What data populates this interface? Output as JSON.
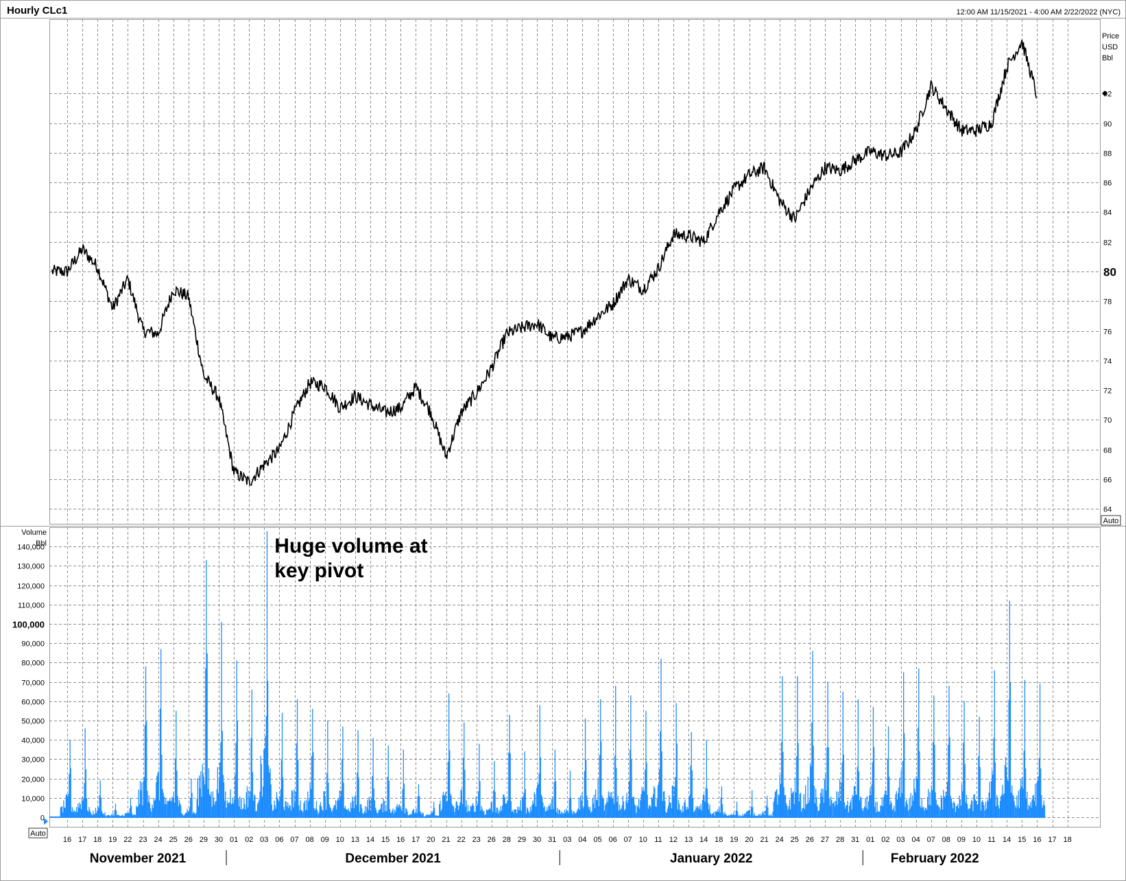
{
  "header": {
    "title": "Hourly CLc1",
    "range": "12:00 AM 11/15/2021 - 4:00 AM 2/22/2022 (NYC)"
  },
  "chart_data": [
    {
      "type": "line",
      "title": "Hourly CLc1",
      "ylabel": "Price USD Bbl",
      "ylabel_lines": [
        "Price",
        "USD",
        "Bbl"
      ],
      "ylim": [
        63,
        97
      ],
      "ytick_values": [
        64,
        66,
        68,
        70,
        72,
        74,
        76,
        78,
        80,
        82,
        84,
        86,
        88,
        90,
        92
      ],
      "ytick_labels": [
        "64",
        "66",
        "68",
        "70",
        "72",
        "74",
        "76",
        "78",
        "80",
        "82",
        "84",
        "86",
        "88",
        "90",
        "92"
      ],
      "emphasized_tick": "80",
      "last_value_marker": 92,
      "auto_button": "Auto",
      "grid": true,
      "series": [
        {
          "color": "#000000",
          "x": [
            "2021-11-15",
            "2021-11-16",
            "2021-11-17",
            "2021-11-18",
            "2021-11-19",
            "2021-11-22",
            "2021-11-23",
            "2021-11-24",
            "2021-11-25",
            "2021-11-26",
            "2021-11-29",
            "2021-11-30",
            "2021-12-01",
            "2021-12-02",
            "2021-12-03",
            "2021-12-06",
            "2021-12-07",
            "2021-12-08",
            "2021-12-09",
            "2021-12-10",
            "2021-12-13",
            "2021-12-14",
            "2021-12-15",
            "2021-12-16",
            "2021-12-17",
            "2021-12-20",
            "2021-12-21",
            "2021-12-22",
            "2021-12-23",
            "2021-12-27",
            "2021-12-28",
            "2021-12-29",
            "2021-12-30",
            "2021-12-31",
            "2022-01-03",
            "2022-01-04",
            "2022-01-05",
            "2022-01-06",
            "2022-01-07",
            "2022-01-10",
            "2022-01-11",
            "2022-01-12",
            "2022-01-13",
            "2022-01-14",
            "2022-01-18",
            "2022-01-19",
            "2022-01-20",
            "2022-01-21",
            "2022-01-24",
            "2022-01-25",
            "2022-01-26",
            "2022-01-27",
            "2022-01-28",
            "2022-01-31",
            "2022-02-01",
            "2022-02-02",
            "2022-02-03",
            "2022-02-04",
            "2022-02-07",
            "2022-02-08",
            "2022-02-09",
            "2022-02-10",
            "2022-02-11",
            "2022-02-14",
            "2022-02-15"
          ],
          "values": [
            80.0,
            81.5,
            80.3,
            77.5,
            79.5,
            76.0,
            75.8,
            78.8,
            78.3,
            73.0,
            71.5,
            66.5,
            65.8,
            67.0,
            68.0,
            70.5,
            72.5,
            72.3,
            70.8,
            71.6,
            71.0,
            70.5,
            70.8,
            72.2,
            70.5,
            67.5,
            70.5,
            71.8,
            73.5,
            75.8,
            76.2,
            76.5,
            75.5,
            75.6,
            76.0,
            77.0,
            77.8,
            79.5,
            78.8,
            80.2,
            82.5,
            82.4,
            82.0,
            84.0,
            85.5,
            86.5,
            87.0,
            84.8,
            83.5,
            85.5,
            87.0,
            86.8,
            87.5,
            88.1,
            87.8,
            88.0,
            89.5,
            92.5,
            91.0,
            89.5,
            89.5,
            90.0,
            93.8,
            95.5,
            91.8
          ]
        }
      ]
    },
    {
      "type": "bar",
      "title": "",
      "ylabel": "Volume Bbl",
      "ylabel_lines": [
        "Volume",
        "Bbl"
      ],
      "ylim": [
        -5000,
        150000
      ],
      "ytick_values": [
        0,
        10000,
        20000,
        30000,
        40000,
        50000,
        60000,
        70000,
        80000,
        90000,
        100000,
        110000,
        120000,
        130000,
        140000
      ],
      "ytick_labels": [
        "0",
        "10,000",
        "20,000",
        "30,000",
        "40,000",
        "50,000",
        "60,000",
        "70,000",
        "80,000",
        "90,000",
        "100,000",
        "110,000",
        "120,000",
        "130,000",
        "140,000"
      ],
      "emphasized_tick": "100,000",
      "auto_button": "Auto",
      "grid": true,
      "bar_color": "#1a8cff",
      "annotation": {
        "lines": [
          "Huge volume at",
          "key pivot"
        ],
        "date": "2021-12-02"
      },
      "series": [
        {
          "x": [
            "2021-11-15",
            "2021-11-16",
            "2021-11-17",
            "2021-11-18",
            "2021-11-19",
            "2021-11-22",
            "2021-11-23",
            "2021-11-24",
            "2021-11-25",
            "2021-11-26",
            "2021-11-29",
            "2021-11-30",
            "2021-12-01",
            "2021-12-02",
            "2021-12-03",
            "2021-12-06",
            "2021-12-07",
            "2021-12-08",
            "2021-12-09",
            "2021-12-10",
            "2021-12-13",
            "2021-12-14",
            "2021-12-15",
            "2021-12-16",
            "2021-12-17",
            "2021-12-20",
            "2021-12-21",
            "2021-12-22",
            "2021-12-23",
            "2021-12-27",
            "2021-12-28",
            "2021-12-29",
            "2021-12-30",
            "2021-12-31",
            "2022-01-03",
            "2022-01-04",
            "2022-01-05",
            "2022-01-06",
            "2022-01-07",
            "2022-01-10",
            "2022-01-11",
            "2022-01-12",
            "2022-01-13",
            "2022-01-14",
            "2022-01-18",
            "2022-01-19",
            "2022-01-20",
            "2022-01-21",
            "2022-01-24",
            "2022-01-25",
            "2022-01-26",
            "2022-01-27",
            "2022-01-28",
            "2022-01-31",
            "2022-02-01",
            "2022-02-02",
            "2022-02-03",
            "2022-02-04",
            "2022-02-07",
            "2022-02-08",
            "2022-02-09",
            "2022-02-10",
            "2022-02-11",
            "2022-02-14",
            "2022-02-15"
          ],
          "values": [
            40000,
            46000,
            19000,
            7000,
            10000,
            78000,
            87000,
            55000,
            20000,
            133000,
            101000,
            81000,
            66000,
            148000,
            54000,
            61000,
            56000,
            50000,
            47000,
            45000,
            41000,
            37000,
            35000,
            17000,
            8000,
            64000,
            49000,
            38000,
            29000,
            53000,
            34000,
            58000,
            35000,
            24000,
            51000,
            61000,
            68000,
            63000,
            55000,
            82000,
            59000,
            44000,
            40000,
            16000,
            8000,
            14000,
            11000,
            73000,
            73000,
            86000,
            70000,
            65000,
            61000,
            57000,
            47000,
            75000,
            77000,
            63000,
            68000,
            60000,
            52000,
            76000,
            112000,
            71000,
            69000
          ]
        }
      ]
    }
  ],
  "x_axis": {
    "day_labels": [
      "16",
      "17",
      "18",
      "19",
      "22",
      "23",
      "24",
      "25",
      "26",
      "29",
      "30",
      "01",
      "02",
      "03",
      "06",
      "07",
      "08",
      "09",
      "10",
      "13",
      "14",
      "15",
      "16",
      "17",
      "20",
      "21",
      "22",
      "23",
      "26",
      "28",
      "29",
      "30",
      "31",
      "03",
      "04",
      "05",
      "06",
      "07",
      "10",
      "11",
      "12",
      "13",
      "14",
      "18",
      "19",
      "20",
      "21",
      "24",
      "25",
      "26",
      "27",
      "28",
      "31",
      "01",
      "02",
      "03",
      "04",
      "07",
      "08",
      "09",
      "10",
      "11",
      "14",
      "15",
      "16",
      "17",
      "18"
    ],
    "months": [
      "November 2021",
      "December 2021",
      "January 2022",
      "February 2022"
    ]
  }
}
